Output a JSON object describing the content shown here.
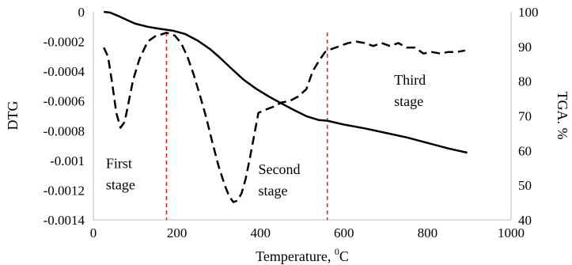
{
  "chart_data": {
    "type": "line",
    "title": "",
    "xlabel": "Temperature, ",
    "xlabel_sup": "0",
    "xlabel_unit": "C",
    "ylabel_left": "DTG",
    "ylabel_right": "TGA. %",
    "xlim": [
      0,
      1000
    ],
    "ylim_left": [
      -0.0014,
      0
    ],
    "ylim_right": [
      40,
      100
    ],
    "grid": false,
    "legend": "none",
    "x_ticks": [
      "0",
      "200",
      "400",
      "600",
      "800",
      "1000"
    ],
    "y_left_ticks": [
      "0",
      "-0.0002",
      "-0.0004",
      "-0.0006",
      "-0.0008",
      "-0.001",
      "-0.0012",
      "-0.0014"
    ],
    "y_right_ticks": [
      "100",
      "90",
      "80",
      "70",
      "60",
      "50",
      "40"
    ],
    "series": [
      {
        "axis": "right",
        "style": "solid",
        "color": "#000000",
        "x": [
          25,
          40,
          60,
          80,
          100,
          130,
          160,
          190,
          220,
          250,
          280,
          300,
          330,
          360,
          390,
          420,
          450,
          480,
          510,
          540,
          560,
          600,
          650,
          700,
          750,
          800,
          850,
          895
        ],
        "y": [
          100,
          99.8,
          98.8,
          97.7,
          96.6,
          95.7,
          95.1,
          94.6,
          93.6,
          91.7,
          89.2,
          87.1,
          83.7,
          80.4,
          77.8,
          75.6,
          73.6,
          71.7,
          69.9,
          68.8,
          68.6,
          67.5,
          66.4,
          65.1,
          63.8,
          62.2,
          60.6,
          59.4
        ]
      },
      {
        "axis": "left",
        "style": "dashed",
        "color": "#000000",
        "x": [
          25,
          35,
          45,
          55,
          65,
          75,
          85,
          95,
          110,
          130,
          150,
          165,
          175,
          185,
          195,
          210,
          225,
          240,
          255,
          270,
          285,
          300,
          315,
          325,
          335,
          345,
          355,
          365,
          375,
          385,
          395,
          410,
          430,
          450,
          470,
          490,
          510,
          525,
          540,
          555,
          570,
          590,
          610,
          630,
          650,
          670,
          690,
          710,
          730,
          750,
          770,
          790,
          810,
          830,
          850,
          870,
          890
        ],
        "y": [
          -0.00024,
          -0.0003,
          -0.00048,
          -0.00068,
          -0.00078,
          -0.00074,
          -0.0006,
          -0.00046,
          -0.00032,
          -0.0002,
          -0.00016,
          -0.00015,
          -0.00014,
          -0.00015,
          -0.00016,
          -0.00021,
          -0.0003,
          -0.00042,
          -0.00056,
          -0.00071,
          -0.00088,
          -0.00104,
          -0.00117,
          -0.00124,
          -0.00128,
          -0.00127,
          -0.00122,
          -0.00112,
          -0.00098,
          -0.00083,
          -0.00068,
          -0.00066,
          -0.00064,
          -0.00061,
          -0.0006,
          -0.00057,
          -0.00052,
          -0.0004,
          -0.00033,
          -0.00027,
          -0.00025,
          -0.00023,
          -0.00021,
          -0.0002,
          -0.00021,
          -0.00023,
          -0.00021,
          -0.00023,
          -0.00021,
          -0.00024,
          -0.00024,
          -0.00028,
          -0.00027,
          -0.00028,
          -0.00027,
          -0.00027,
          -0.00026
        ]
      }
    ],
    "vlines": [
      {
        "x": 175,
        "color": "#e32020",
        "style": "dashed"
      },
      {
        "x": 560,
        "color": "#e32020",
        "style": "dashed"
      }
    ],
    "annotations": [
      {
        "lines": [
          "First",
          "stage"
        ],
        "x": 30,
        "y": -0.00105
      },
      {
        "lines": [
          "Second",
          "stage"
        ],
        "x": 395,
        "y": -0.00109
      },
      {
        "lines": [
          "Third",
          "stage"
        ],
        "x": 720,
        "y": -0.00049
      }
    ]
  }
}
